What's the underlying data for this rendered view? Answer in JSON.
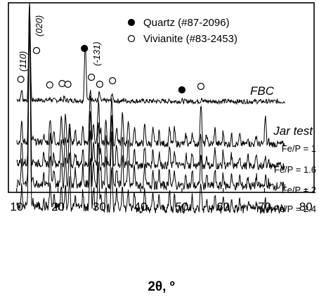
{
  "chart_data": {
    "type": "line",
    "xlabel": "2θ, º",
    "ylabel": "",
    "xlim": [
      8,
      82
    ],
    "xticks": [
      10,
      20,
      30,
      40,
      50,
      60,
      70,
      80
    ],
    "xtick_labels": [
      "10",
      "20",
      "30",
      "40",
      "50",
      "60",
      "70",
      "80"
    ],
    "grid": false,
    "legend": {
      "placement": "top-right",
      "entries": [
        {
          "marker": "filled-circle",
          "label": "Quartz (#87-2096)"
        },
        {
          "marker": "open-circle",
          "label": "Vivianite (#83-2453)"
        }
      ]
    },
    "section_labels": [
      "FBC",
      "Jar test"
    ],
    "peak_labels": [
      {
        "x": 11.2,
        "label": "(110)"
      },
      {
        "x": 13.2,
        "label": "(020)"
      },
      {
        "x": 28.2,
        "label": "(-131)"
      }
    ],
    "series": [
      {
        "name": "FBC",
        "x": [
          10,
          11.2,
          12.2,
          13.1,
          14,
          16,
          18.1,
          20,
          20.8,
          21.5,
          22.3,
          24,
          26.6,
          27.8,
          28.3,
          30,
          30.5,
          32,
          33.1,
          34,
          36,
          38,
          42,
          45,
          50,
          54.8,
          58,
          60,
          68,
          75
        ],
        "y": [
          0.02,
          0.15,
          0.03,
          1.0,
          0.04,
          0.03,
          0.08,
          0.04,
          0.07,
          0.08,
          0.05,
          0.05,
          0.6,
          0.14,
          0.08,
          0.12,
          0.04,
          0.05,
          0.12,
          0.04,
          0.06,
          0.04,
          0.04,
          0.03,
          0.05,
          0.08,
          0.03,
          0.05,
          0.04,
          0.02
        ],
        "markers": [
          {
            "x": 11.0,
            "type": "vivianite"
          },
          {
            "x": 14.8,
            "type": "vivianite"
          },
          {
            "x": 26.4,
            "type": "quartz"
          },
          {
            "x": 18.0,
            "type": "vivianite"
          },
          {
            "x": 21.0,
            "type": "vivianite"
          },
          {
            "x": 22.4,
            "type": "vivianite"
          },
          {
            "x": 28.1,
            "type": "vivianite"
          },
          {
            "x": 30.1,
            "type": "vivianite"
          },
          {
            "x": 33.2,
            "type": "vivianite"
          },
          {
            "x": 50.0,
            "type": "quartz"
          },
          {
            "x": 54.6,
            "type": "vivianite"
          }
        ]
      },
      {
        "name": "Fe/P = 1",
        "x": [
          10,
          11.2,
          12,
          13.1,
          14,
          16.5,
          18.1,
          19,
          20.8,
          21.8,
          22.8,
          24.2,
          26.0,
          27.8,
          28.6,
          29.8,
          30.3,
          31.6,
          33.0,
          34.2,
          35.6,
          37.0,
          38.5,
          41.0,
          43.0,
          44.5,
          47.0,
          48.2,
          51.0,
          52.5,
          54.6,
          56.0,
          58.0,
          60.0,
          62.0,
          64.0,
          66.0,
          68.0,
          70.2,
          71.0,
          75
        ],
        "y": [
          0.05,
          0.18,
          0.06,
          1.0,
          0.08,
          0.1,
          0.22,
          0.12,
          0.22,
          0.25,
          0.18,
          0.12,
          0.15,
          0.38,
          0.18,
          0.32,
          0.15,
          0.2,
          0.36,
          0.15,
          0.24,
          0.2,
          0.15,
          0.16,
          0.14,
          0.12,
          0.15,
          0.14,
          0.1,
          0.12,
          0.32,
          0.1,
          0.14,
          0.12,
          0.1,
          0.1,
          0.09,
          0.1,
          0.22,
          0.06,
          0.04
        ]
      },
      {
        "name": "Fe/P = 1.6",
        "x": [
          10,
          11.2,
          12,
          13.1,
          14,
          16.5,
          18.1,
          19,
          20.8,
          21.8,
          22.8,
          24.2,
          26.0,
          27.8,
          28.6,
          29.8,
          30.3,
          31.6,
          33.0,
          34.2,
          35.6,
          37.0,
          38.5,
          41.0,
          43.0,
          44.5,
          47.0,
          48.2,
          51.0,
          52.5,
          54.6,
          56.0,
          58.0,
          60.0,
          62.0,
          64.0,
          66.0,
          68.0,
          70.2,
          71.0,
          75
        ],
        "y": [
          0.05,
          0.18,
          0.06,
          1.0,
          0.08,
          0.1,
          0.22,
          0.12,
          0.2,
          0.22,
          0.26,
          0.12,
          0.15,
          0.36,
          0.18,
          0.3,
          0.15,
          0.2,
          0.34,
          0.15,
          0.22,
          0.18,
          0.15,
          0.15,
          0.13,
          0.12,
          0.15,
          0.13,
          0.1,
          0.12,
          0.22,
          0.1,
          0.13,
          0.12,
          0.1,
          0.1,
          0.09,
          0.1,
          0.1,
          0.06,
          0.04
        ]
      },
      {
        "name": "Fe/P = 2",
        "x": [
          10,
          11.2,
          12,
          13.1,
          14,
          16.5,
          18.1,
          19,
          20.8,
          21.8,
          22.8,
          24.2,
          26.0,
          27.8,
          28.6,
          29.8,
          30.3,
          31.6,
          33.0,
          34.2,
          35.6,
          37.0,
          38.5,
          41.0,
          43.0,
          44.5,
          47.0,
          48.2,
          51.0,
          52.5,
          54.6,
          56.0,
          58.0,
          60.0,
          62.0,
          64.0,
          66.0,
          68.0,
          70.2,
          71.0,
          75
        ],
        "y": [
          0.05,
          0.18,
          0.06,
          1.0,
          0.08,
          0.1,
          0.2,
          0.12,
          0.18,
          0.2,
          0.24,
          0.12,
          0.14,
          0.34,
          0.17,
          0.28,
          0.14,
          0.18,
          0.32,
          0.14,
          0.2,
          0.17,
          0.14,
          0.14,
          0.12,
          0.11,
          0.14,
          0.12,
          0.1,
          0.11,
          0.2,
          0.1,
          0.12,
          0.11,
          0.1,
          0.09,
          0.09,
          0.09,
          0.09,
          0.06,
          0.04
        ]
      },
      {
        "name": "Fe/P = 2.4",
        "x": [
          10,
          11.2,
          12,
          13.1,
          14,
          16.5,
          18.1,
          19,
          20.8,
          21.8,
          22.8,
          24.2,
          26.0,
          27.8,
          28.6,
          29.8,
          30.3,
          31.6,
          33.0,
          34.2,
          35.6,
          37.0,
          38.5,
          41.0,
          43.0,
          44.5,
          47.0,
          48.2,
          51.0,
          52.5,
          54.6,
          56.0,
          58.0,
          60.0,
          62.0,
          64.0,
          66.0,
          68.0,
          70.2,
          71.0,
          75
        ],
        "y": [
          0.05,
          0.14,
          0.05,
          0.95,
          0.07,
          0.08,
          0.16,
          0.1,
          0.14,
          0.15,
          0.18,
          0.1,
          0.12,
          0.28,
          0.14,
          0.24,
          0.12,
          0.14,
          0.24,
          0.12,
          0.16,
          0.13,
          0.12,
          0.12,
          0.1,
          0.1,
          0.12,
          0.1,
          0.08,
          0.1,
          0.16,
          0.08,
          0.1,
          0.09,
          0.08,
          0.08,
          0.07,
          0.08,
          0.08,
          0.05,
          0.04
        ]
      }
    ]
  }
}
